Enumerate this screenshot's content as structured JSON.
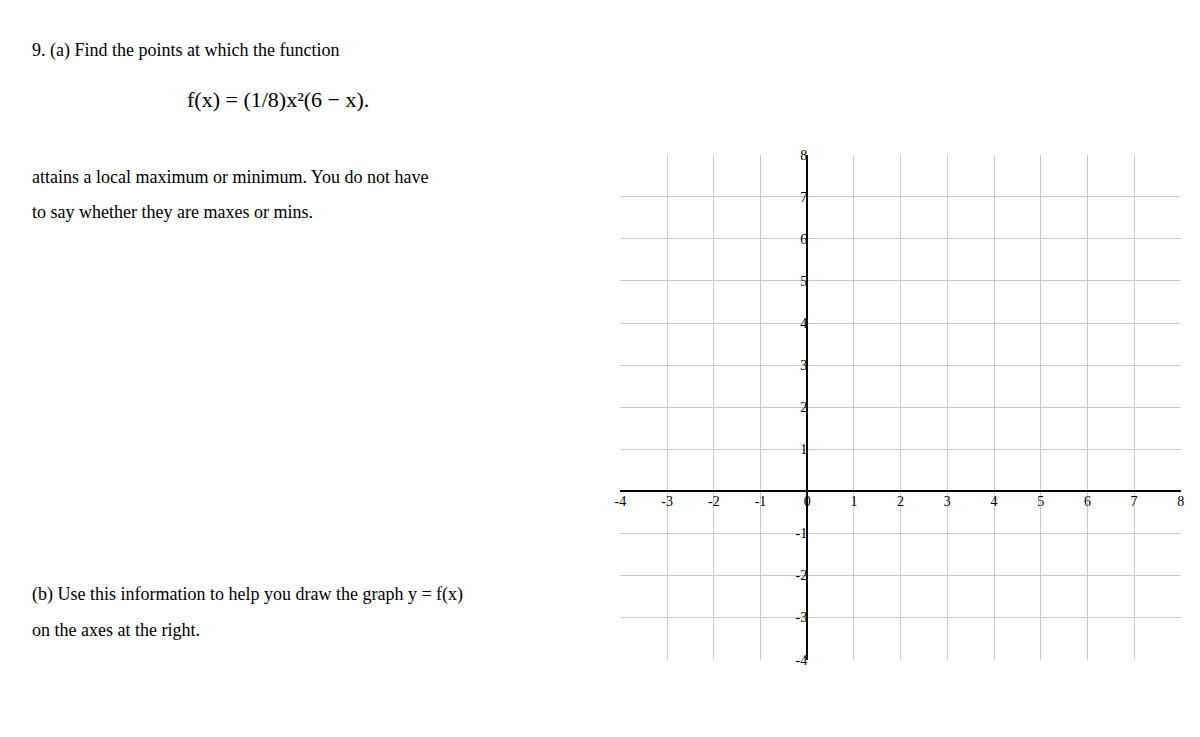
{
  "chart_data": {
    "type": "line",
    "annotations": [
      "9. (a) Find the points at which the function",
      "f(x) = (1/8)x²(6 − x).",
      "attains a local maximum or minimum. You do not have",
      "to say whether they are maxes or mins.",
      "(b) Use this information to help you draw the graph y = f(x)",
      "on the axes at the right."
    ],
    "xlim": [
      -4,
      8
    ],
    "ylim": [
      -4,
      8
    ],
    "xticks": [
      -4,
      -3,
      -2,
      -1,
      0,
      1,
      2,
      3,
      4,
      5,
      6,
      7,
      8
    ],
    "yticks": [
      -4,
      -3,
      -2,
      -1,
      1,
      2,
      3,
      4,
      5,
      6,
      7,
      8
    ],
    "grid": true
  }
}
